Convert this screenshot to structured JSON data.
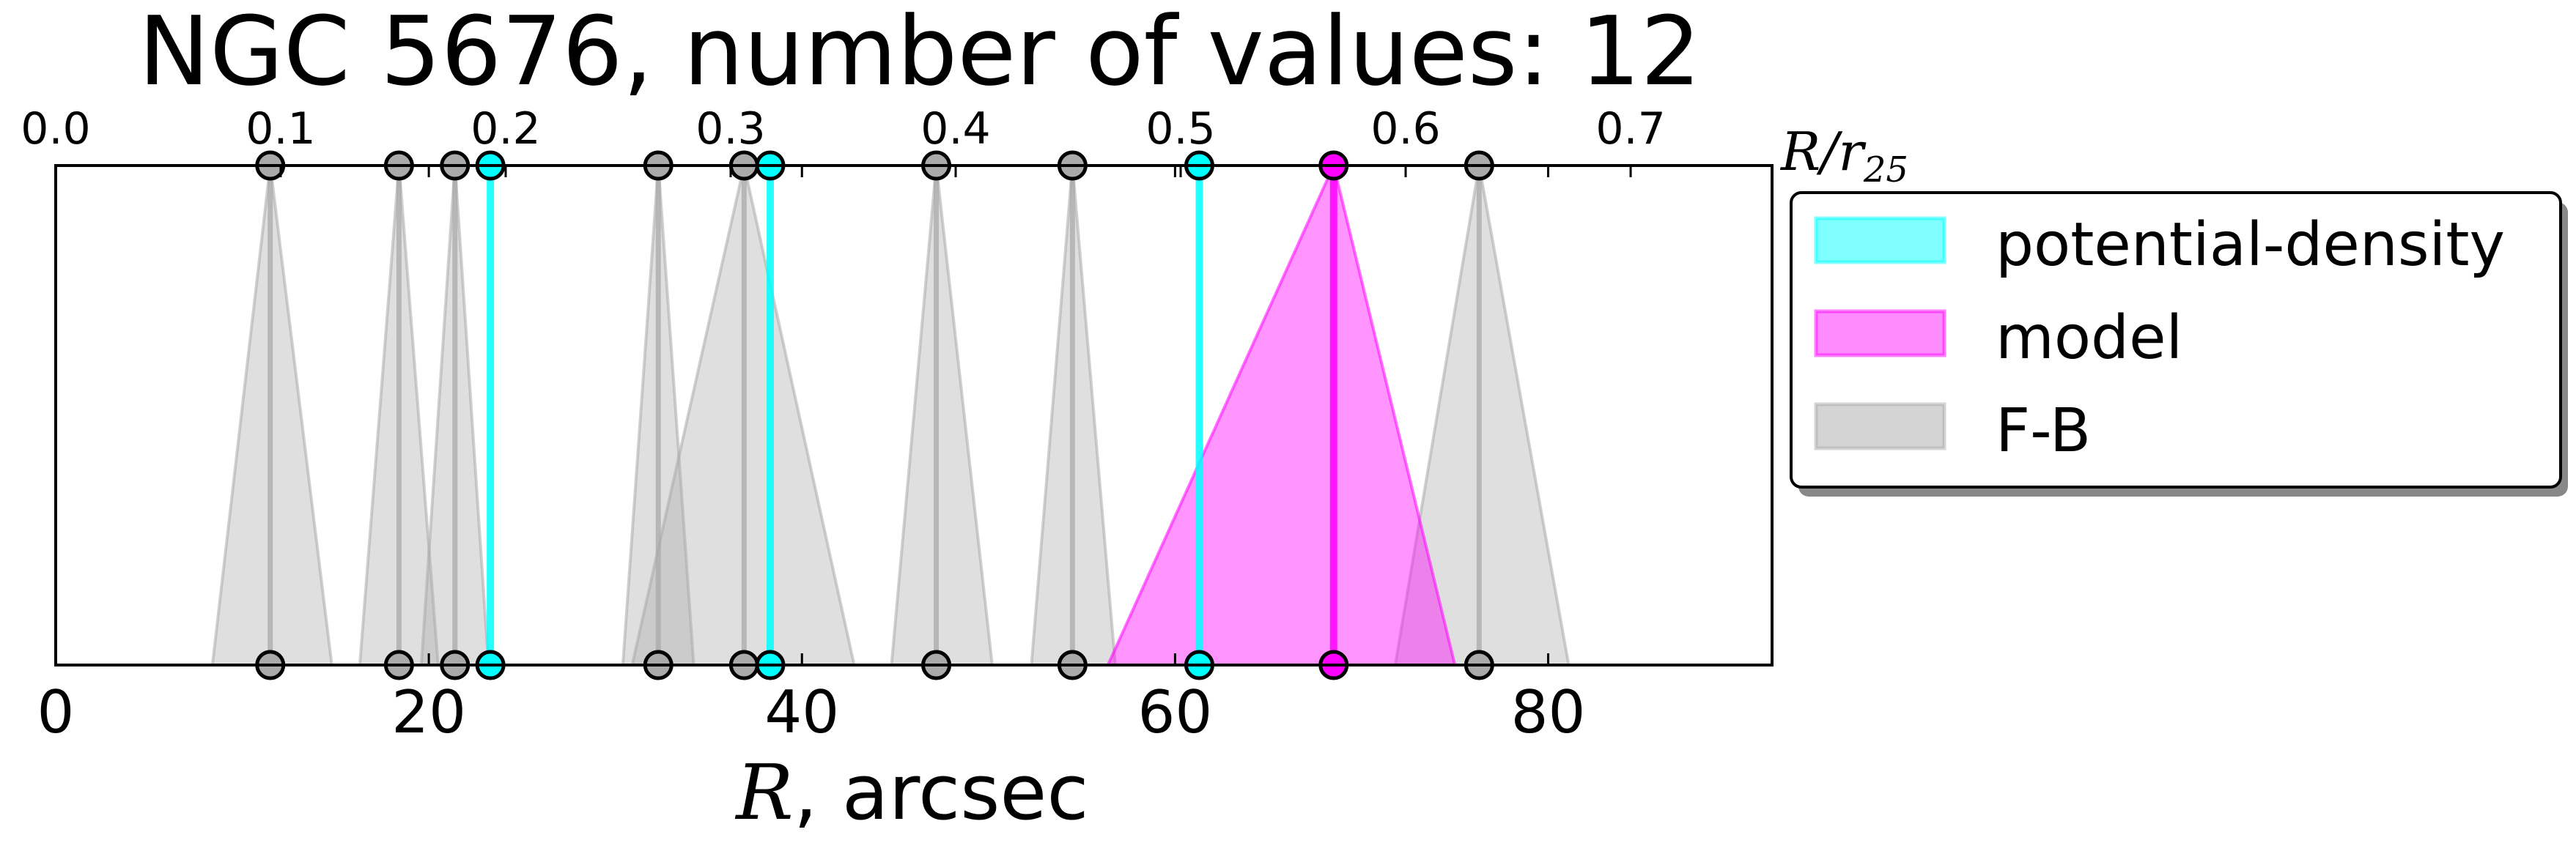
{
  "chart_data": {
    "type": "interval-markers",
    "title": "NGC 5676, number of values: 12",
    "xlabel_symbol": "R",
    "xlabel_rest": ", arcsec",
    "top_axis_label": "R/r",
    "top_axis_label_sub": "25",
    "xlim": [
      0,
      92
    ],
    "x_ticks": [
      0,
      20,
      40,
      60,
      80
    ],
    "x_tick_labels": [
      "0",
      "20",
      "40",
      "60",
      "80"
    ],
    "top_ticks": [
      0.0,
      0.1,
      0.2,
      0.3,
      0.4,
      0.5,
      0.6,
      0.7
    ],
    "top_tick_labels": [
      "0.0",
      "0.1",
      "0.2",
      "0.3",
      "0.4",
      "0.5",
      "0.6",
      "0.7"
    ],
    "r25_arcsec": 120.6,
    "legend": [
      {
        "label": "potential-density",
        "color": "#00ffff"
      },
      {
        "label": "model",
        "color": "#ff00ff"
      },
      {
        "label": "F-B",
        "color": "#aaaaaa"
      }
    ],
    "series": [
      {
        "name": "F-B",
        "color": "#aaaaaa",
        "markers": [
          {
            "center": 11.5,
            "low": 8.4,
            "high": 14.8
          },
          {
            "center": 18.4,
            "low": 16.3,
            "high": 20.5
          },
          {
            "center": 21.4,
            "low": 19.6,
            "high": 23.2
          },
          {
            "center": 32.3,
            "low": 30.4,
            "high": 34.2
          },
          {
            "center": 36.9,
            "low": 30.9,
            "high": 42.8
          },
          {
            "center": 47.2,
            "low": 44.8,
            "high": 50.2
          },
          {
            "center": 54.5,
            "low": 52.3,
            "high": 56.8
          },
          {
            "center": 76.3,
            "low": 71.8,
            "high": 81.1
          }
        ]
      },
      {
        "name": "potential-density",
        "color": "#00ffff",
        "markers": [
          {
            "center": 23.3
          },
          {
            "center": 38.3
          },
          {
            "center": 61.3
          }
        ]
      },
      {
        "name": "model",
        "color": "#ff00ff",
        "markers": [
          {
            "center": 68.5,
            "low": 56.4,
            "high": 75.0
          }
        ]
      }
    ]
  }
}
